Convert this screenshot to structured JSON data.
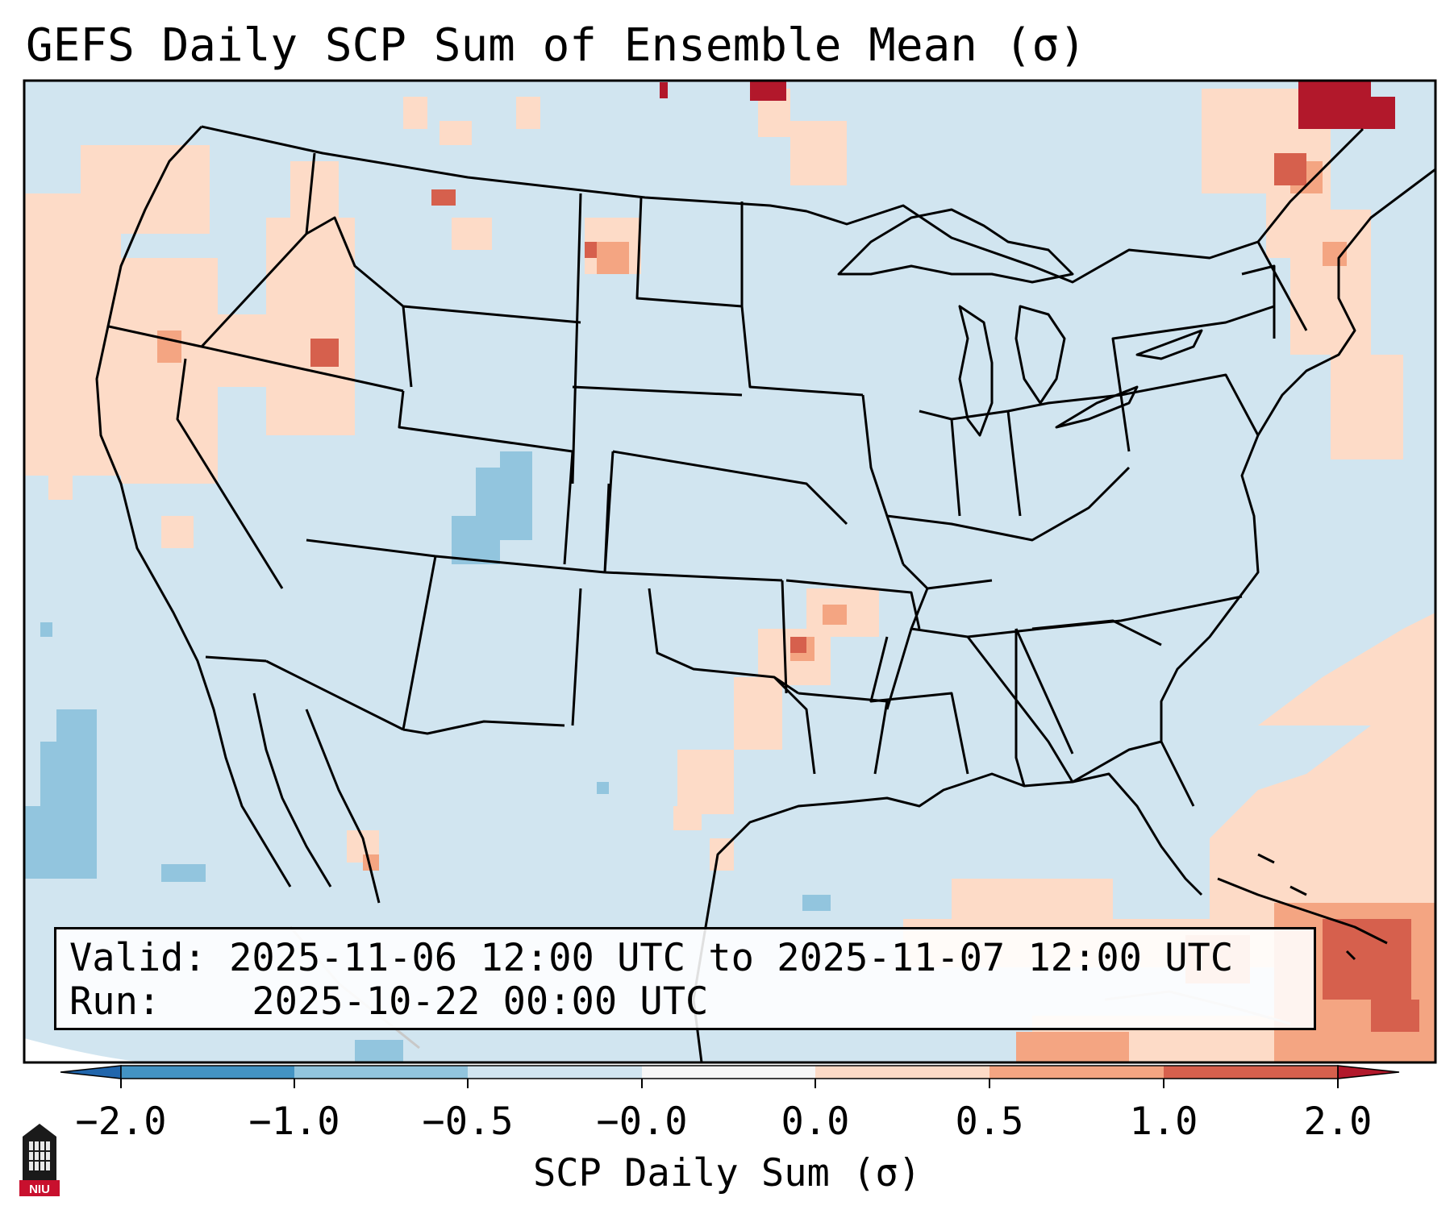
{
  "title": "GEFS Daily SCP Sum of Ensemble Mean (σ)",
  "info": {
    "valid_label": "Valid:",
    "valid_value": "2025-11-06 12:00 UTC to 2025-11-07 12:00 UTC",
    "run_label": "Run:",
    "run_value": "2025-10-22 00:00 UTC"
  },
  "colorbar": {
    "label": "SCP Daily Sum (σ)",
    "ticks": [
      "−2.0",
      "−1.0",
      "−0.5",
      "−0.0",
      "0.0",
      "0.5",
      "1.0",
      "2.0"
    ],
    "colors": [
      "#4393c3",
      "#92c5de",
      "#d1e5f0",
      "#f7f7f7",
      "#fddbc7",
      "#f4a582",
      "#d6604d"
    ],
    "under_color": "#2166ac",
    "over_color": "#b2182b"
  },
  "logo": {
    "text": "NIU",
    "icon": "university-tower-icon"
  },
  "map": {
    "background_color": "#d1e5f0",
    "projection": "lambert-conformal",
    "region": "Contiguous United States",
    "features": [
      "states",
      "coastlines",
      "international-borders"
    ]
  }
}
